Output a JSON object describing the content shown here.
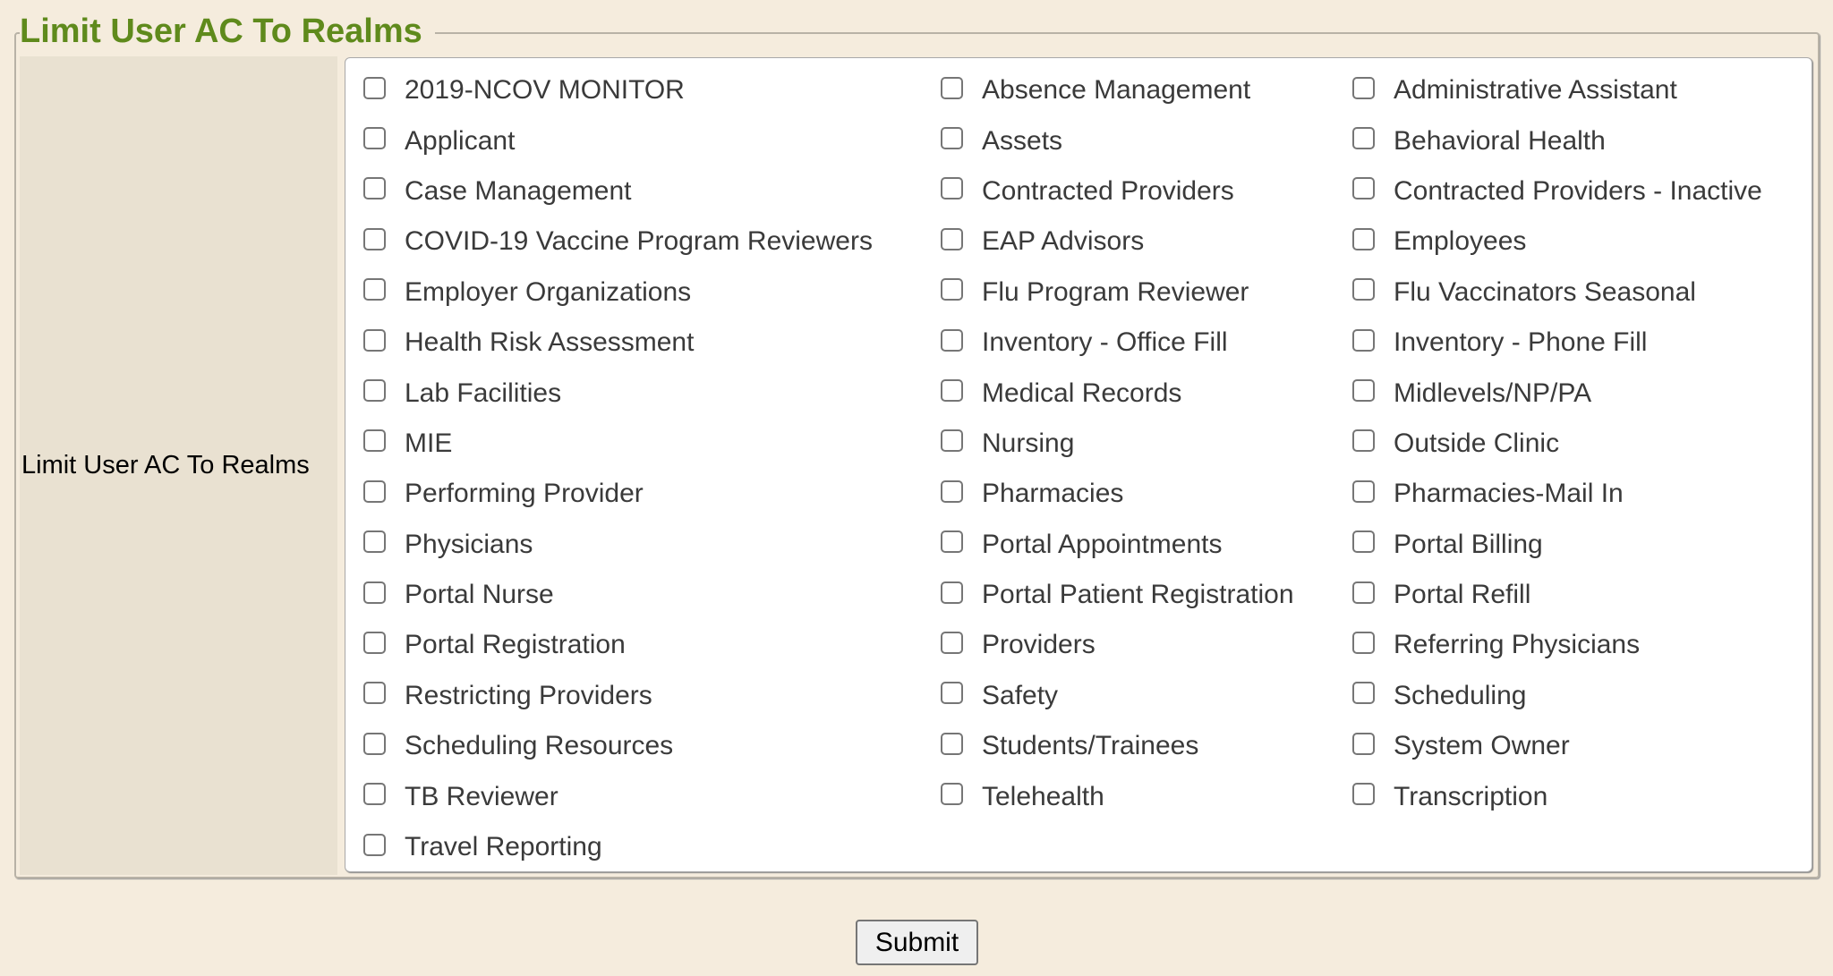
{
  "section": {
    "legend": "Limit User AC To Realms",
    "field_label": "Limit User AC To Realms"
  },
  "realms": [
    {
      "label": "2019-NCOV MONITOR",
      "checked": false
    },
    {
      "label": "Absence Management",
      "checked": false
    },
    {
      "label": "Administrative Assistant",
      "checked": false
    },
    {
      "label": "Applicant",
      "checked": false
    },
    {
      "label": "Assets",
      "checked": false
    },
    {
      "label": "Behavioral Health",
      "checked": false
    },
    {
      "label": "Case Management",
      "checked": false
    },
    {
      "label": "Contracted Providers",
      "checked": false
    },
    {
      "label": "Contracted Providers - Inactive",
      "checked": false
    },
    {
      "label": "COVID-19 Vaccine Program Reviewers",
      "checked": false
    },
    {
      "label": "EAP Advisors",
      "checked": false
    },
    {
      "label": "Employees",
      "checked": false
    },
    {
      "label": "Employer Organizations",
      "checked": false
    },
    {
      "label": "Flu Program Reviewer",
      "checked": false
    },
    {
      "label": "Flu Vaccinators Seasonal",
      "checked": false
    },
    {
      "label": "Health Risk Assessment",
      "checked": false
    },
    {
      "label": "Inventory - Office Fill",
      "checked": false
    },
    {
      "label": "Inventory - Phone Fill",
      "checked": false
    },
    {
      "label": "Lab Facilities",
      "checked": false
    },
    {
      "label": "Medical Records",
      "checked": false
    },
    {
      "label": "Midlevels/NP/PA",
      "checked": false
    },
    {
      "label": "MIE",
      "checked": false
    },
    {
      "label": "Nursing",
      "checked": false
    },
    {
      "label": "Outside Clinic",
      "checked": false
    },
    {
      "label": "Performing Provider",
      "checked": false
    },
    {
      "label": "Pharmacies",
      "checked": false
    },
    {
      "label": "Pharmacies-Mail In",
      "checked": false
    },
    {
      "label": "Physicians",
      "checked": false
    },
    {
      "label": "Portal Appointments",
      "checked": false
    },
    {
      "label": "Portal Billing",
      "checked": false
    },
    {
      "label": "Portal Nurse",
      "checked": false
    },
    {
      "label": "Portal Patient Registration",
      "checked": false
    },
    {
      "label": "Portal Refill",
      "checked": false
    },
    {
      "label": "Portal Registration",
      "checked": false
    },
    {
      "label": "Providers",
      "checked": false
    },
    {
      "label": "Referring Physicians",
      "checked": false
    },
    {
      "label": "Restricting Providers",
      "checked": false
    },
    {
      "label": "Safety",
      "checked": false
    },
    {
      "label": "Scheduling",
      "checked": false
    },
    {
      "label": "Scheduling Resources",
      "checked": false
    },
    {
      "label": "Students/Trainees",
      "checked": false
    },
    {
      "label": "System Owner",
      "checked": false
    },
    {
      "label": "TB Reviewer",
      "checked": false
    },
    {
      "label": "Telehealth",
      "checked": false
    },
    {
      "label": "Transcription",
      "checked": false
    },
    {
      "label": "Travel Reporting",
      "checked": false
    }
  ],
  "actions": {
    "submit_label": "Submit"
  },
  "colors": {
    "legend": "#5f8a1c",
    "background": "#f5ecdd",
    "label_cell": "#e9e1d1"
  }
}
